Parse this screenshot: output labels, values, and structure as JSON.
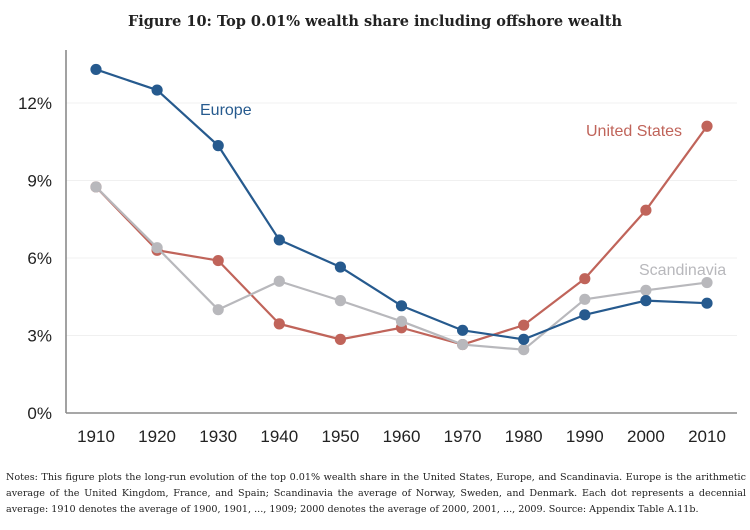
{
  "figure": {
    "title": "Figure 10: Top 0.01% wealth share including offshore wealth",
    "notes": "Notes: This figure plots the long-run evolution of the top 0.01% wealth share in the United States, Europe, and Scandinavia. Europe is the arithmetic average of the United Kingdom, France, and Spain; Scandinavia the average of Norway, Sweden, and Denmark. Each dot represents a decennial average: 1910 denotes the average of 1900, 1901, ..., 1909; 2000 denotes the average of 2000, 2001, ..., 2009. Source: Appendix Table A.11b."
  },
  "chart_data": {
    "type": "line",
    "title": "Figure 10: Top 0.01% wealth share including offshore wealth",
    "xlabel": "",
    "ylabel": "",
    "x": [
      1910,
      1920,
      1930,
      1940,
      1950,
      1960,
      1970,
      1980,
      1990,
      2000,
      2010
    ],
    "x_tick_labels": [
      "1910",
      "1920",
      "1930",
      "1940",
      "1950",
      "1960",
      "1970",
      "1980",
      "1990",
      "2000",
      "2010"
    ],
    "y_ticks": [
      0,
      3,
      6,
      9,
      12
    ],
    "y_tick_labels": [
      "0%",
      "3%",
      "6%",
      "9%",
      "12%"
    ],
    "ylim": [
      0,
      13.9
    ],
    "grid": "horizontal, light",
    "legend": "inline labels",
    "series": [
      {
        "name": "United States",
        "color": "#c0645a",
        "values": [
          8.75,
          6.3,
          5.9,
          3.45,
          2.85,
          3.3,
          2.65,
          3.4,
          5.2,
          7.85,
          11.1
        ],
        "label_position": "top-right"
      },
      {
        "name": "Scandinavia",
        "color": "#b8b8bc",
        "values": [
          8.75,
          6.4,
          4.0,
          5.1,
          4.35,
          3.55,
          2.65,
          2.45,
          4.4,
          4.75,
          5.05
        ],
        "label_position": "right"
      },
      {
        "name": "Europe",
        "color": "#265a8e",
        "values": [
          13.3,
          12.5,
          10.35,
          6.7,
          5.65,
          4.15,
          3.2,
          2.85,
          3.8,
          4.35,
          4.25
        ],
        "label_position": "top-left"
      }
    ]
  }
}
